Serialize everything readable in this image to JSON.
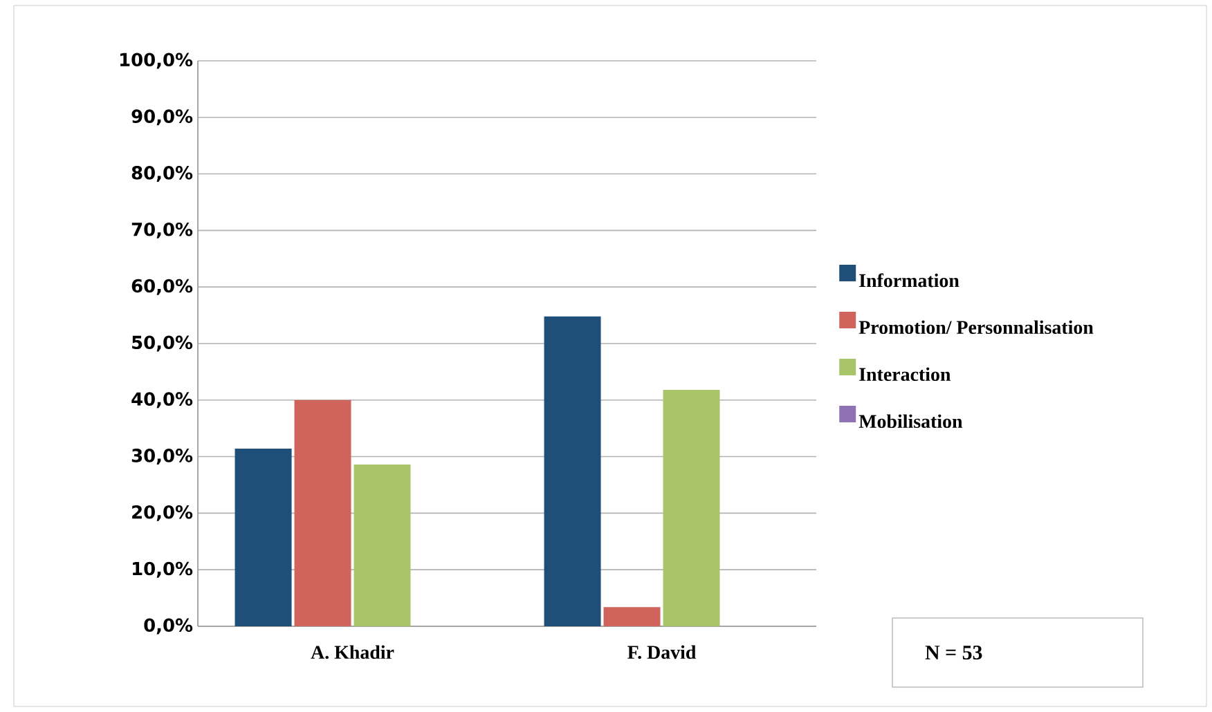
{
  "chart_data": {
    "type": "bar",
    "categories": [
      "A. Khadir",
      "F. David"
    ],
    "series": [
      {
        "name": "Information",
        "color": "#1f4e79",
        "values": [
          31.4,
          54.8
        ]
      },
      {
        "name": "Promotion/ Personnalisation",
        "color": "#d0645c",
        "values": [
          40.0,
          3.4
        ]
      },
      {
        "name": "Interaction",
        "color": "#a9c56a",
        "values": [
          28.6,
          41.8
        ]
      },
      {
        "name": "Mobilisation",
        "color": "#8e72b4",
        "values": [
          0,
          0
        ]
      }
    ],
    "ylim": [
      0,
      100
    ],
    "yticks": [
      {
        "value": 0,
        "label": "0,0%"
      },
      {
        "value": 10,
        "label": "10,0%"
      },
      {
        "value": 20,
        "label": "20,0%"
      },
      {
        "value": 30,
        "label": "30,0%"
      },
      {
        "value": 40,
        "label": "40,0%"
      },
      {
        "value": 50,
        "label": "50,0%"
      },
      {
        "value": 60,
        "label": "60,0%"
      },
      {
        "value": 70,
        "label": "70,0%"
      },
      {
        "value": 80,
        "label": "80,0%"
      },
      {
        "value": 90,
        "label": "90,0%"
      },
      {
        "value": 100,
        "label": "100,0%"
      }
    ],
    "grid": "y",
    "legend": "right",
    "annotations": [
      "N = 53"
    ]
  }
}
